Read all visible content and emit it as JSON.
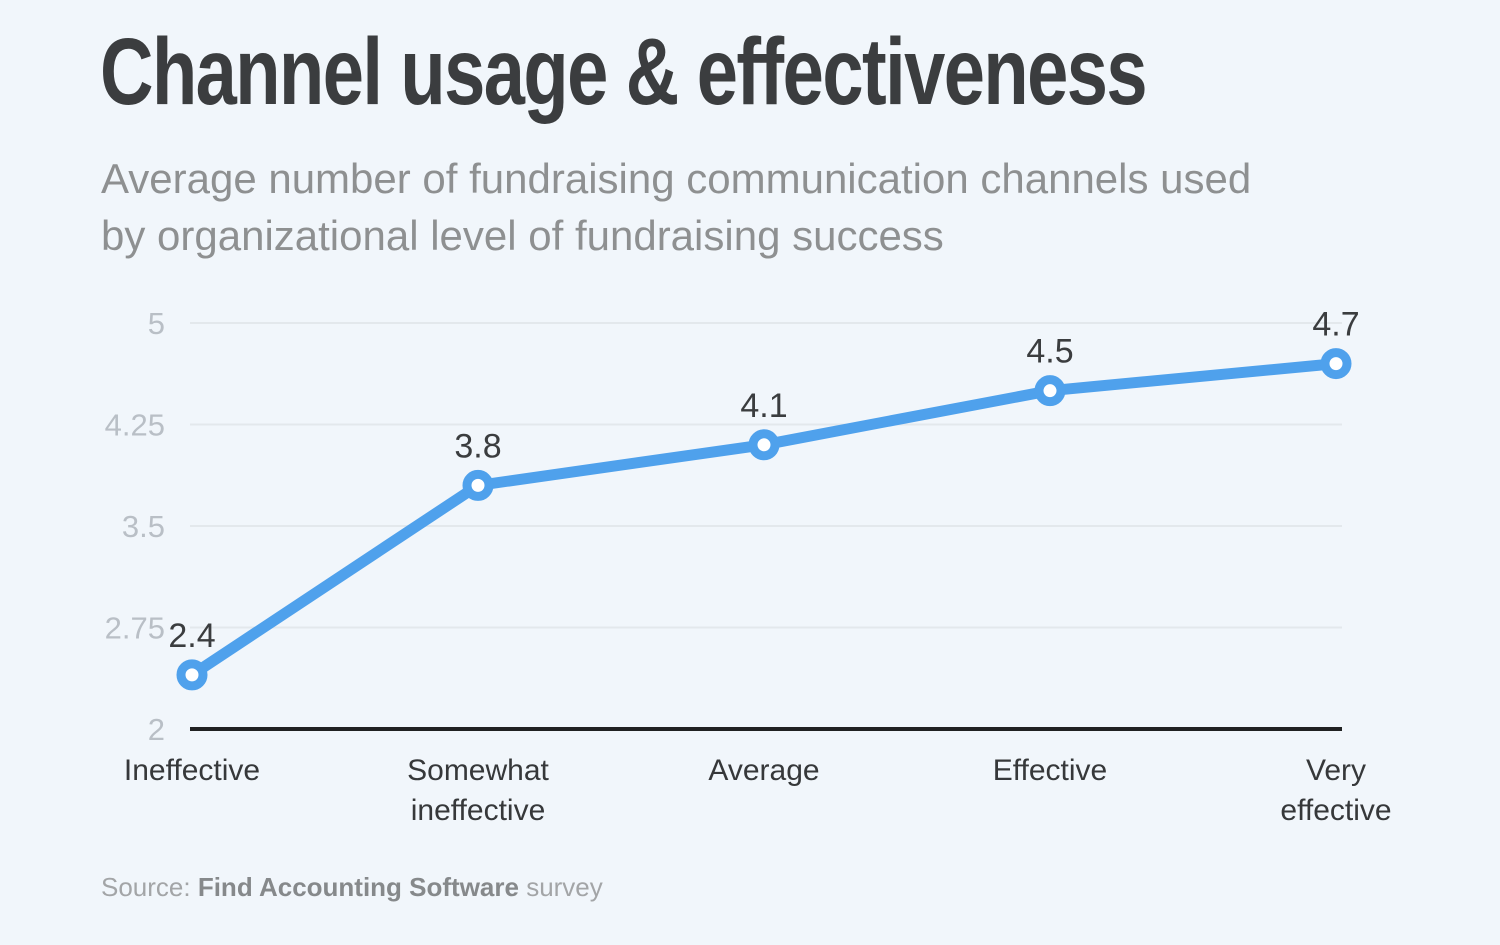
{
  "header": {
    "subtitle_lines": [
      "Average number of fundraising communication channels used",
      "by organizational level of fundraising success"
    ]
  },
  "chart_data": {
    "type": "line",
    "title": "Channel usage & effectiveness",
    "subtitle": "Average number of fundraising communication channels used by organizational level of fundraising success",
    "categories": [
      "Ineffective",
      "Somewhat ineffective",
      "Average",
      "Effective",
      "Very effective"
    ],
    "category_label_lines": [
      [
        "Ineffective"
      ],
      [
        "Somewhat",
        "ineffective"
      ],
      [
        "Average"
      ],
      [
        "Effective"
      ],
      [
        "Very",
        "effective"
      ]
    ],
    "values": [
      2.4,
      3.8,
      4.1,
      4.5,
      4.7
    ],
    "point_labels": [
      "2.4",
      "3.8",
      "4.1",
      "4.5",
      "4.7"
    ],
    "xlabel": "",
    "ylabel": "",
    "ylim": [
      2,
      5
    ],
    "yticks": [
      5,
      4.25,
      3.5,
      2.75,
      2
    ],
    "grid": true,
    "legend": "none",
    "colors": {
      "line": "#4fa1ec",
      "marker_fill": "#ffffff",
      "grid": "#e3e8ec",
      "axis": "#202122",
      "tick_label": "#b9bfc6",
      "point_label": "#3b3d3f",
      "category_label": "#36383a"
    }
  },
  "footer": {
    "source_prefix": "Source: ",
    "source_name": "Find Accounting Software",
    "source_suffix": " survey"
  },
  "theme": {
    "background": "#f1f6fb",
    "title_color": "#3b3d3f",
    "subtitle_color": "#8e9091",
    "source_color": "#a3a5a7"
  }
}
